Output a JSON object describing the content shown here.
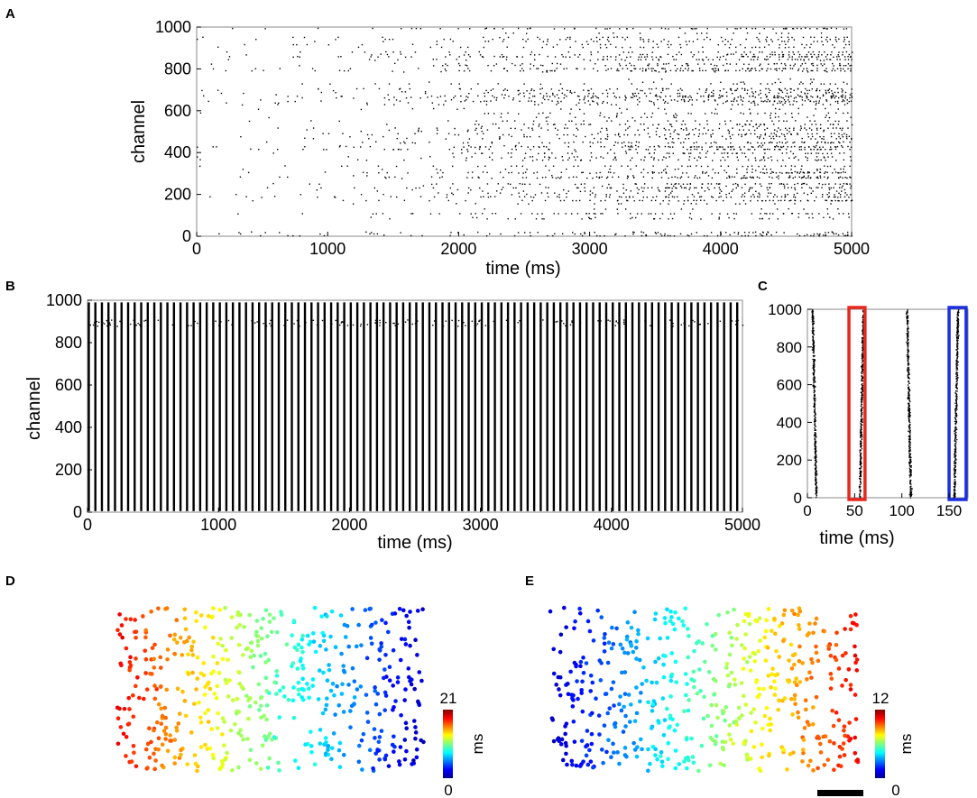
{
  "panels": {
    "A": {
      "letter": "A"
    },
    "B": {
      "letter": "B"
    },
    "C": {
      "letter": "C"
    },
    "D": {
      "letter": "D"
    },
    "E": {
      "letter": "E"
    }
  },
  "chart_data": [
    {
      "panel": "A",
      "type": "scatter",
      "description_kind": "raster",
      "xlabel": "time (ms)",
      "ylabel": "channel",
      "xlim": [
        0,
        5000
      ],
      "ylim": [
        0,
        1000
      ],
      "xticks": [
        0,
        1000,
        2000,
        3000,
        4000,
        5000
      ],
      "yticks": [
        0,
        200,
        400,
        600,
        800,
        1000
      ],
      "marker_color": "#000000"
    },
    {
      "panel": "B",
      "type": "scatter",
      "description_kind": "raster",
      "xlabel": "time (ms)",
      "ylabel": "channel",
      "xlim": [
        0,
        5000
      ],
      "ylim": [
        0,
        1000
      ],
      "xticks": [
        0,
        1000,
        2000,
        3000,
        4000,
        5000
      ],
      "yticks": [
        0,
        200,
        400,
        600,
        800,
        1000
      ],
      "burst_period_ms": 50,
      "marker_color": "#000000"
    },
    {
      "panel": "C",
      "type": "scatter",
      "description_kind": "raster",
      "xlabel": "time (ms)",
      "ylabel": "",
      "xlim": [
        0,
        170
      ],
      "ylim": [
        0,
        1000
      ],
      "xticks": [
        0,
        50,
        100,
        150
      ],
      "yticks": [
        0,
        200,
        400,
        600,
        800,
        1000
      ],
      "ytick_labels": [
        "0",
        "200",
        "400",
        "600",
        "800",
        "1000"
      ],
      "bursts_ms": [
        5,
        55,
        105,
        155
      ],
      "highlight_boxes": [
        {
          "x_range": [
            44,
            61
          ],
          "color": "#e8281e"
        },
        {
          "x_range": [
            150,
            168
          ],
          "color": "#1c2fe0"
        }
      ],
      "marker_color": "#000000"
    },
    {
      "panel": "D",
      "type": "scatter",
      "description_kind": "spatial latency map",
      "colorbar": {
        "min": 0,
        "max": 21,
        "label": "ms",
        "ticks": [
          "21",
          "0"
        ]
      },
      "gradient_direction": "left-high to right-low",
      "colormap": [
        "#00008f",
        "#0000ff",
        "#0080ff",
        "#00ffff",
        "#80ff80",
        "#ffff00",
        "#ff8000",
        "#ff0000",
        "#800000"
      ]
    },
    {
      "panel": "E",
      "type": "scatter",
      "description_kind": "spatial latency map",
      "colorbar": {
        "min": 0,
        "max": 12,
        "label": "ms",
        "ticks": [
          "12",
          "0"
        ]
      },
      "gradient_direction": "left-low to right-high",
      "colormap": [
        "#00008f",
        "#0000ff",
        "#0080ff",
        "#00ffff",
        "#80ff80",
        "#ffff00",
        "#ff8000",
        "#ff0000",
        "#800000"
      ]
    }
  ]
}
